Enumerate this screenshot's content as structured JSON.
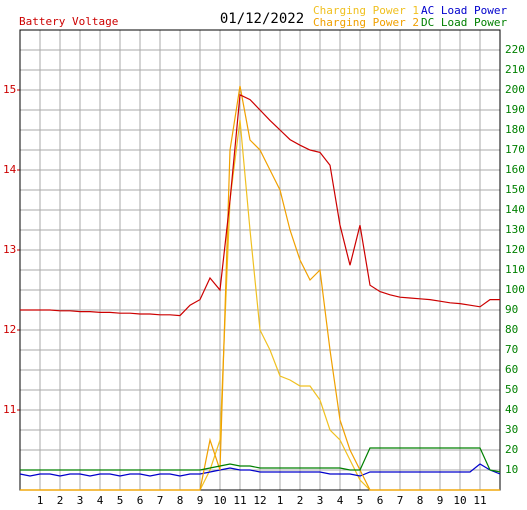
{
  "chart_data": {
    "type": "line",
    "title": "01/12/2022",
    "ylabel": "Battery Voltage",
    "x": [
      0,
      0.5,
      1,
      1.5,
      2,
      2.5,
      3,
      3.5,
      4,
      4.5,
      5,
      5.5,
      6,
      6.5,
      7,
      7.5,
      8,
      8.5,
      9,
      9.5,
      10,
      10.5,
      11,
      11.5,
      12,
      12.5,
      13,
      13.5,
      14,
      14.5,
      15,
      15.5,
      16,
      16.5,
      17,
      17.5,
      18,
      18.5,
      19,
      19.5,
      20,
      20.5,
      21,
      21.5,
      22,
      22.5,
      23,
      23.5,
      24
    ],
    "xlim": [
      0,
      24
    ],
    "xticks": [
      1,
      2,
      3,
      4,
      5,
      6,
      7,
      8,
      9,
      10,
      11,
      12,
      {
        "value": 13,
        "label": "1"
      },
      {
        "value": 14,
        "label": "2"
      },
      {
        "value": 15,
        "label": "3"
      },
      {
        "value": 16,
        "label": "4"
      },
      {
        "value": 17,
        "label": "5"
      },
      {
        "value": 18,
        "label": "6"
      },
      {
        "value": 19,
        "label": "7"
      },
      {
        "value": 20,
        "label": "8"
      },
      {
        "value": 21,
        "label": "9"
      },
      {
        "value": 22,
        "label": "10"
      },
      {
        "value": 23,
        "label": "11"
      }
    ],
    "ylim": [
      10,
      15.75
    ],
    "yticks": [
      11,
      12,
      13,
      14,
      15
    ],
    "ytick_color": "#cc0000",
    "y2lim": [
      0,
      230
    ],
    "y2ticks": [
      10,
      20,
      30,
      40,
      50,
      60,
      70,
      80,
      90,
      100,
      110,
      120,
      130,
      140,
      150,
      160,
      170,
      180,
      190,
      200,
      210,
      220
    ],
    "y2tick_color": "#008000",
    "grid": true,
    "series": [
      {
        "color": "#cc0000",
        "values": [
          12.25,
          12.25,
          12.25,
          12.25,
          12.24,
          12.24,
          12.23,
          12.23,
          12.22,
          12.22,
          12.21,
          12.21,
          12.2,
          12.2,
          12.19,
          12.19,
          12.18,
          12.31,
          12.38,
          12.65,
          12.5,
          13.62,
          14.94,
          14.88,
          14.75,
          14.62,
          14.5,
          14.38,
          14.31,
          14.25,
          14.22,
          14.06,
          13.31,
          12.81,
          13.31,
          12.56,
          12.48,
          12.44,
          12.41,
          12.4,
          12.39,
          12.38,
          12.36,
          12.34,
          12.33,
          12.31,
          12.29,
          12.38,
          12.38
        ]
      },
      {
        "name": "Charging Power 1",
        "color": "#f0c020",
        "axis": "y2",
        "values": [
          0,
          0,
          0,
          0,
          0,
          0,
          0,
          0,
          0,
          0,
          0,
          0,
          0,
          0,
          0,
          0,
          0,
          0,
          0,
          10,
          25,
          145,
          185,
          130,
          80,
          70,
          57,
          55,
          52,
          52,
          45,
          30,
          25,
          15,
          5,
          0,
          0,
          0,
          0,
          0,
          0,
          0,
          0,
          0,
          0,
          0,
          0,
          0,
          0
        ]
      },
      {
        "name": "AC Load Power",
        "color": "#0000cc",
        "axis": "y2",
        "values": [
          8,
          7,
          8,
          8,
          7,
          8,
          8,
          7,
          8,
          8,
          7,
          8,
          8,
          7,
          8,
          8,
          7,
          8,
          8,
          9,
          10,
          11,
          10,
          10,
          9,
          9,
          9,
          9,
          9,
          9,
          9,
          8,
          8,
          8,
          7,
          9,
          9,
          9,
          9,
          9,
          9,
          9,
          9,
          9,
          9,
          9,
          13,
          10,
          8
        ]
      },
      {
        "name": "Charging Power 2",
        "color": "#f0a000",
        "axis": "y2",
        "values": [
          0,
          0,
          0,
          0,
          0,
          0,
          0,
          0,
          0,
          0,
          0,
          0,
          0,
          0,
          0,
          0,
          0,
          0,
          0,
          25,
          10,
          170,
          202,
          175,
          170,
          160,
          150,
          130,
          115,
          105,
          110,
          70,
          35,
          20,
          10,
          0,
          0,
          0,
          0,
          0,
          0,
          0,
          0,
          0,
          0,
          0,
          0,
          0,
          0
        ]
      },
      {
        "name": "DC Load Power",
        "color": "#008000",
        "axis": "y2",
        "values": [
          10,
          10,
          10,
          10,
          10,
          10,
          10,
          10,
          10,
          10,
          10,
          10,
          10,
          10,
          10,
          10,
          10,
          10,
          10,
          11,
          12,
          13,
          12,
          12,
          11,
          11,
          11,
          11,
          11,
          11,
          11,
          11,
          11,
          10,
          10,
          21,
          21,
          21,
          21,
          21,
          21,
          21,
          21,
          21,
          21,
          21,
          21,
          10,
          9
        ]
      }
    ]
  }
}
